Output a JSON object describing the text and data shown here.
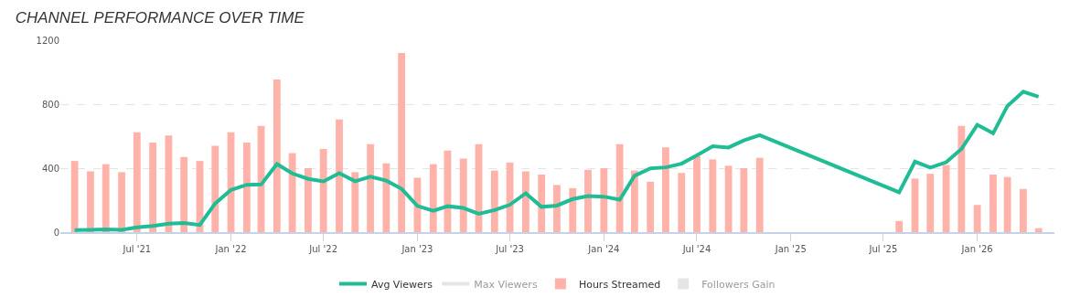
{
  "chart_data": {
    "type": "bar",
    "title": "CHANNEL PERFORMANCE OVER TIME",
    "x": [
      "2021-03",
      "2021-04",
      "2021-05",
      "2021-06",
      "2021-07",
      "2021-08",
      "2021-09",
      "2021-10",
      "2021-11",
      "2021-12",
      "2022-01",
      "2022-02",
      "2022-03",
      "2022-04",
      "2022-05",
      "2022-06",
      "2022-07",
      "2022-08",
      "2022-09",
      "2022-10",
      "2022-11",
      "2022-12",
      "2023-01",
      "2023-02",
      "2023-03",
      "2023-04",
      "2023-05",
      "2023-06",
      "2023-07",
      "2023-08",
      "2023-09",
      "2023-10",
      "2023-11",
      "2023-12",
      "2024-01",
      "2024-02",
      "2024-03",
      "2024-04",
      "2024-05",
      "2024-06",
      "2024-07",
      "2024-08",
      "2024-09",
      "2024-10",
      "2024-11",
      "2025-08",
      "2025-09",
      "2025-10",
      "2025-11",
      "2025-12",
      "2026-01",
      "2026-02",
      "2026-03",
      "2026-04",
      "2026-05"
    ],
    "series": [
      {
        "name": "Avg Viewers",
        "type": "line",
        "color": "#1fbc95",
        "values": [
          13,
          15,
          17,
          15,
          30,
          38,
          53,
          57,
          45,
          179,
          264,
          296,
          298,
          426,
          367,
          333,
          317,
          369,
          318,
          347,
          322,
          271,
          164,
          134,
          162,
          151,
          115,
          138,
          171,
          243,
          158,
          166,
          207,
          226,
          222,
          203,
          352,
          399,
          405,
          428,
          480,
          537,
          529,
          573,
          607,
          249,
          441,
          403,
          437,
          520,
          671,
          618,
          789,
          878,
          846
        ]
      },
      {
        "name": "Max Viewers",
        "type": "line",
        "color": "#cccccc",
        "values": [
          null,
          null,
          null,
          null,
          null,
          null,
          null,
          null,
          null,
          null,
          null,
          null,
          null,
          null,
          null,
          null,
          null,
          null,
          null,
          null,
          null,
          null,
          null,
          null,
          null,
          null,
          null,
          null,
          null,
          null,
          null,
          null,
          null,
          null,
          null,
          null,
          null,
          null,
          null,
          null,
          null,
          null,
          null,
          null,
          null,
          null,
          null,
          null,
          null,
          null,
          null,
          null,
          null,
          null,
          null
        ]
      },
      {
        "name": "Hours Streamed",
        "color": "#ffb2aa",
        "values": [
          445,
          380,
          425,
          375,
          625,
          560,
          605,
          470,
          445,
          540,
          625,
          560,
          665,
          955,
          495,
          400,
          520,
          705,
          375,
          550,
          430,
          1120,
          340,
          425,
          510,
          460,
          550,
          385,
          435,
          380,
          360,
          295,
          275,
          390,
          400,
          550,
          385,
          315,
          530,
          370,
          475,
          455,
          415,
          400,
          465,
          70,
          335,
          365,
          420,
          665,
          170,
          360,
          345,
          270,
          25
        ]
      },
      {
        "name": "Followers Gain",
        "color": "#cccccc",
        "values": [
          null,
          null,
          null,
          null,
          null,
          null,
          null,
          null,
          null,
          null,
          null,
          null,
          null,
          null,
          null,
          null,
          null,
          null,
          null,
          null,
          null,
          null,
          null,
          null,
          null,
          null,
          null,
          null,
          null,
          null,
          null,
          null,
          null,
          null,
          null,
          null,
          null,
          null,
          null,
          null,
          null,
          null,
          null,
          null,
          null,
          null,
          null,
          null,
          null,
          null,
          null,
          null,
          null,
          null,
          null
        ]
      }
    ],
    "xlim": [
      "2021-02-01",
      "2026-06-01"
    ],
    "xticks": [
      {
        "value": "2021-07-01",
        "label": "Jul '21"
      },
      {
        "value": "2022-01-01",
        "label": "Jan '22"
      },
      {
        "value": "2022-07-01",
        "label": "Jul '22"
      },
      {
        "value": "2023-01-01",
        "label": "Jan '23"
      },
      {
        "value": "2023-07-01",
        "label": "Jul '23"
      },
      {
        "value": "2024-01-01",
        "label": "Jan '24"
      },
      {
        "value": "2024-07-01",
        "label": "Jul '24"
      },
      {
        "value": "2025-01-01",
        "label": "Jan '25"
      },
      {
        "value": "2025-07-01",
        "label": "Jul '25"
      },
      {
        "value": "2026-01-01",
        "label": "Jan '26"
      }
    ],
    "ylim": [
      0,
      1200
    ],
    "yticks": [
      0,
      400,
      800,
      1200
    ],
    "grid": "y",
    "legend": "bottom",
    "marker": "none",
    "line_style": "solid"
  }
}
